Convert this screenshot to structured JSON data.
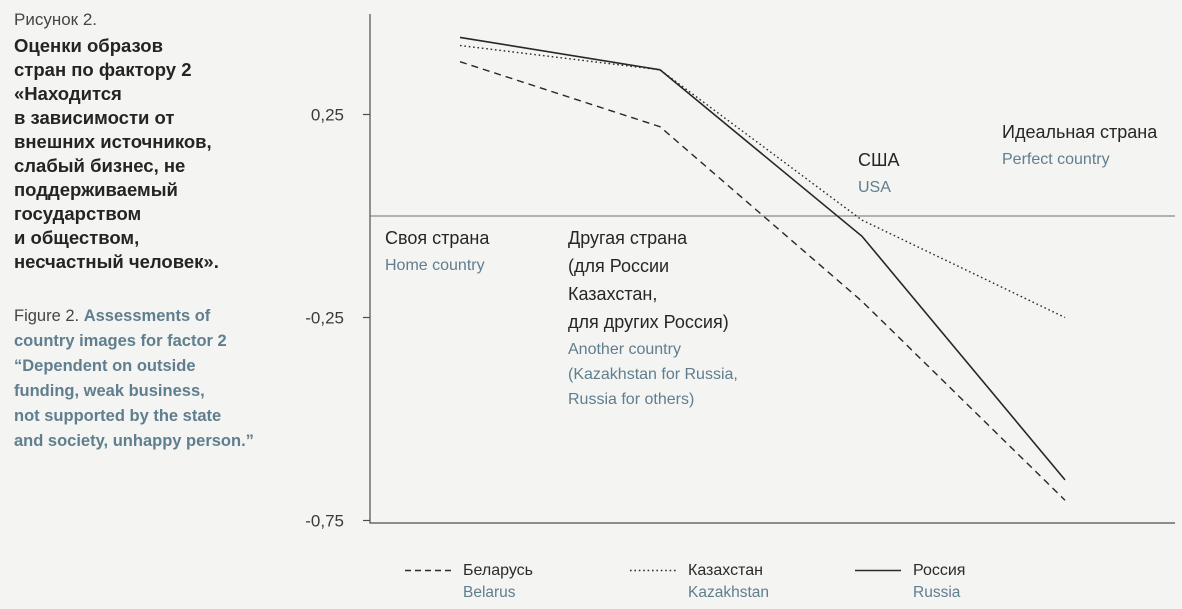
{
  "page": {
    "background": "#f4f4f2"
  },
  "caption": {
    "figure_label_ru": "Рисунок 2.",
    "title_ru": "Оценки образов\nстран по фактору 2\n«Находится\nв зависимости от\nвнешних источников,\nслабый бизнес, не\nподдерживаемый\nгосударством\nи обществом,\nнесчастный человек».",
    "figure_label_en": "Figure 2.",
    "title_en": "Assessments of\ncountry images for factor 2\n“Dependent on outside\nfunding, weak business,\nnot supported by the state\nand society, unhappy person.”"
  },
  "chart_data": {
    "type": "line",
    "title": "Оценки образов стран по фактору 2",
    "categories": [
      {
        "ru": "Своя страна",
        "en": "Home country"
      },
      {
        "ru": "Другая страна\n(для России\nКазахстан,\nдля других Россия)",
        "en": "Another country\n(Kazakhstan for Russia,\nRussia for others)"
      },
      {
        "ru": "США",
        "en": "USA"
      },
      {
        "ru": "Идеальная страна",
        "en": "Perfect country"
      }
    ],
    "series": [
      {
        "name_ru": "Беларусь",
        "name_en": "Belarus",
        "line_style": "dashed",
        "values": [
          0.38,
          0.22,
          -0.21,
          -0.7
        ]
      },
      {
        "name_ru": "Казахстан",
        "name_en": "Kazakhstan",
        "line_style": "dotted",
        "values": [
          0.42,
          0.36,
          -0.01,
          -0.25
        ]
      },
      {
        "name_ru": "Россия",
        "name_en": "Russia",
        "line_style": "solid",
        "values": [
          0.44,
          0.36,
          -0.05,
          -0.65
        ]
      }
    ],
    "y_ticks": [
      {
        "label": "0,25",
        "value": 0.25
      },
      {
        "label": "-0,25",
        "value": -0.25
      },
      {
        "label": "-0,75",
        "value": -0.75
      }
    ],
    "ylim": [
      -0.8,
      0.5
    ],
    "zero_baseline": 0,
    "grid": false,
    "legend_position": "bottom",
    "line_color": "#272727",
    "axis_color": "#4d4d4d"
  }
}
